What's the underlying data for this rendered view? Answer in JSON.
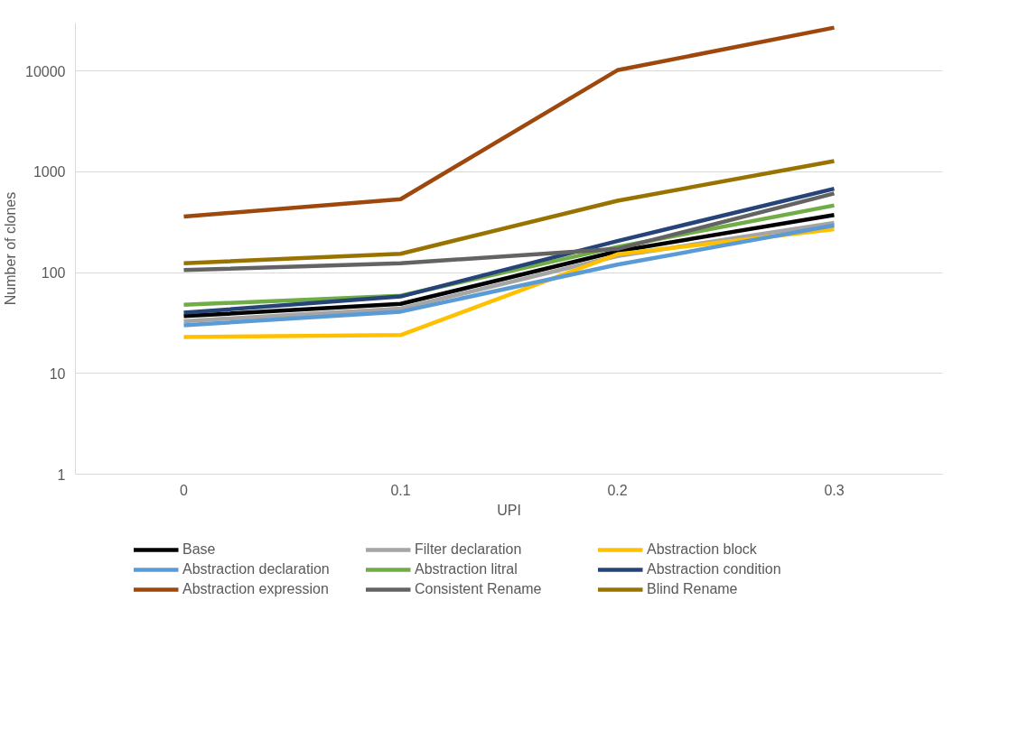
{
  "chart_data": {
    "type": "line",
    "xlabel": "UPI",
    "ylabel": "Number of clones",
    "categories": [
      "0",
      "0.1",
      "0.2",
      "0.3"
    ],
    "log": true,
    "ylim": [
      1,
      30000
    ],
    "yticks": [
      1,
      10,
      100,
      1000,
      10000
    ],
    "grid": "y",
    "legend": "bottom",
    "marker": "none",
    "line_style": "solid",
    "series": [
      {
        "name": "Base",
        "color": "#000000",
        "values": [
          37,
          49,
          163,
          374
        ]
      },
      {
        "name": "Filter declaration",
        "color": "#a5a5a5",
        "values": [
          33,
          44,
          146,
          312
        ]
      },
      {
        "name": "Abstraction block",
        "color": "#ffc000",
        "values": [
          23,
          24,
          152,
          270
        ]
      },
      {
        "name": "Abstraction declaration",
        "color": "#5b9bd5",
        "values": [
          30,
          41,
          120,
          295
        ]
      },
      {
        "name": "Abstraction litral",
        "color": "#70ad47",
        "values": [
          48,
          59,
          180,
          465
        ]
      },
      {
        "name": "Abstraction condition",
        "color": "#264478",
        "values": [
          40,
          58,
          206,
          680
        ]
      },
      {
        "name": "Abstraction expression",
        "color": "#9e480e",
        "values": [
          360,
          535,
          10200,
          27000
        ]
      },
      {
        "name": "Consistent Rename",
        "color": "#636363",
        "values": [
          106,
          124,
          172,
          610
        ]
      },
      {
        "name": "Blind Rename",
        "color": "#997300",
        "values": [
          124,
          154,
          517,
          1280
        ]
      }
    ]
  }
}
